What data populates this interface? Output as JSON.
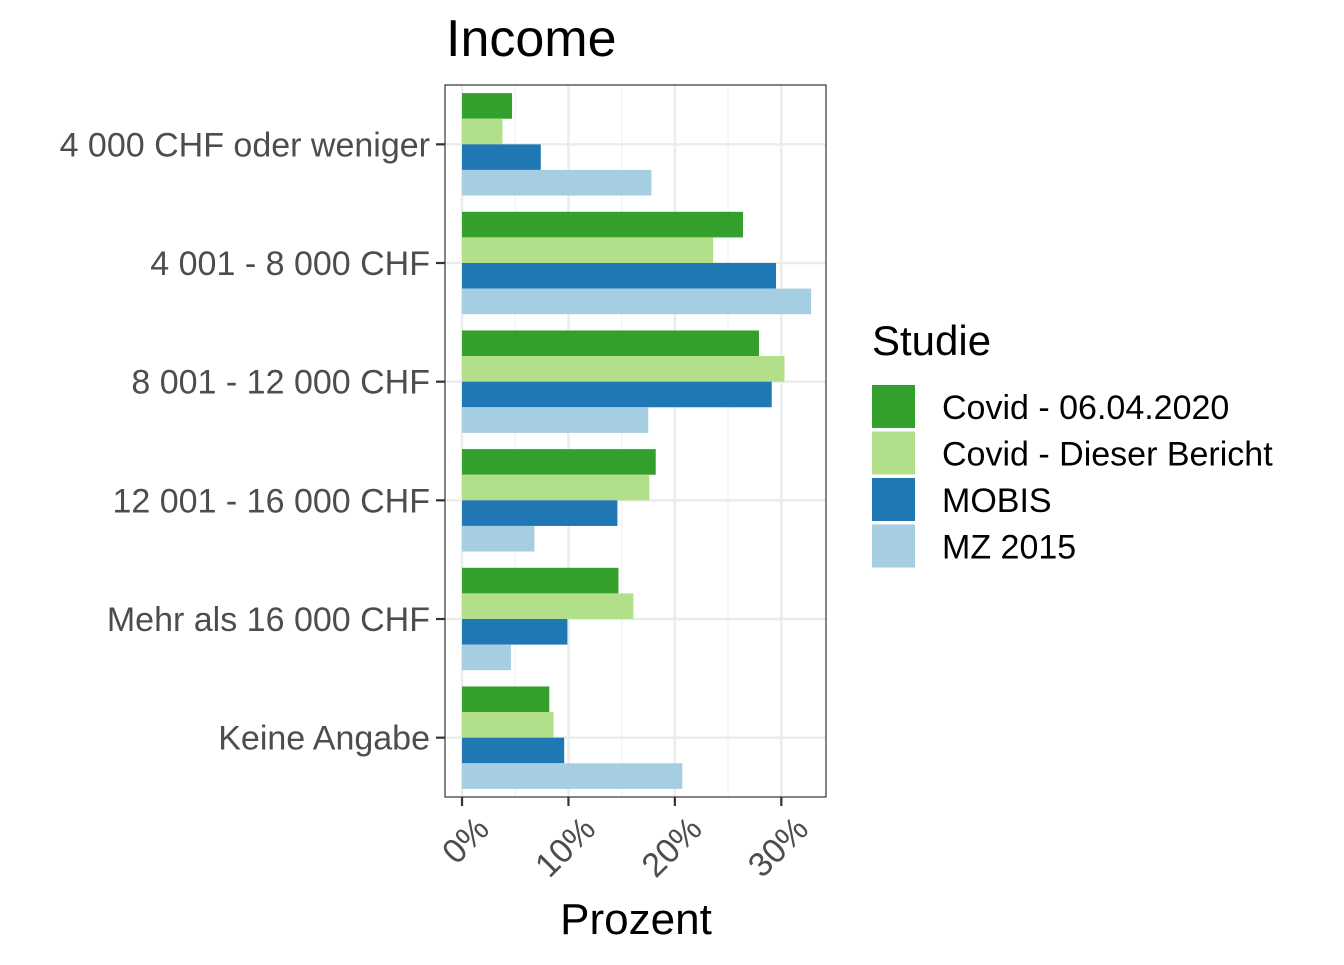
{
  "chart_data": {
    "type": "bar",
    "orientation": "horizontal",
    "title": "Income",
    "xlabel": "Prozent",
    "ylabel": "",
    "xlim": [
      -1.6,
      34.2
    ],
    "x_ticks": [
      0,
      10,
      20,
      30
    ],
    "x_tick_labels": [
      "0%",
      "10%",
      "20%",
      "30%"
    ],
    "x_minor_ticks": [
      5,
      15,
      25
    ],
    "grid": true,
    "legend": {
      "title": "Studie",
      "position": "right"
    },
    "categories": [
      "4 000 CHF oder weniger",
      "4 001 - 8 000 CHF",
      "8 001 - 12 000 CHF",
      "12 001 - 16 000 CHF",
      "Mehr als 16 000 CHF",
      "Keine Angabe"
    ],
    "series": [
      {
        "name": "Covid - 06.04.2020",
        "color": "#33a02c",
        "values": [
          4.7,
          26.4,
          27.9,
          18.2,
          14.7,
          8.2
        ]
      },
      {
        "name": "Covid - Dieser Bericht",
        "color": "#b2df8a",
        "values": [
          3.8,
          23.6,
          30.3,
          17.6,
          16.1,
          8.6
        ]
      },
      {
        "name": "MOBIS",
        "color": "#1f78b4",
        "values": [
          7.4,
          29.5,
          29.1,
          14.6,
          9.9,
          9.6
        ]
      },
      {
        "name": "MZ 2015",
        "color": "#a6cee3",
        "values": [
          17.8,
          32.8,
          17.5,
          6.8,
          4.6,
          20.7
        ]
      }
    ]
  }
}
